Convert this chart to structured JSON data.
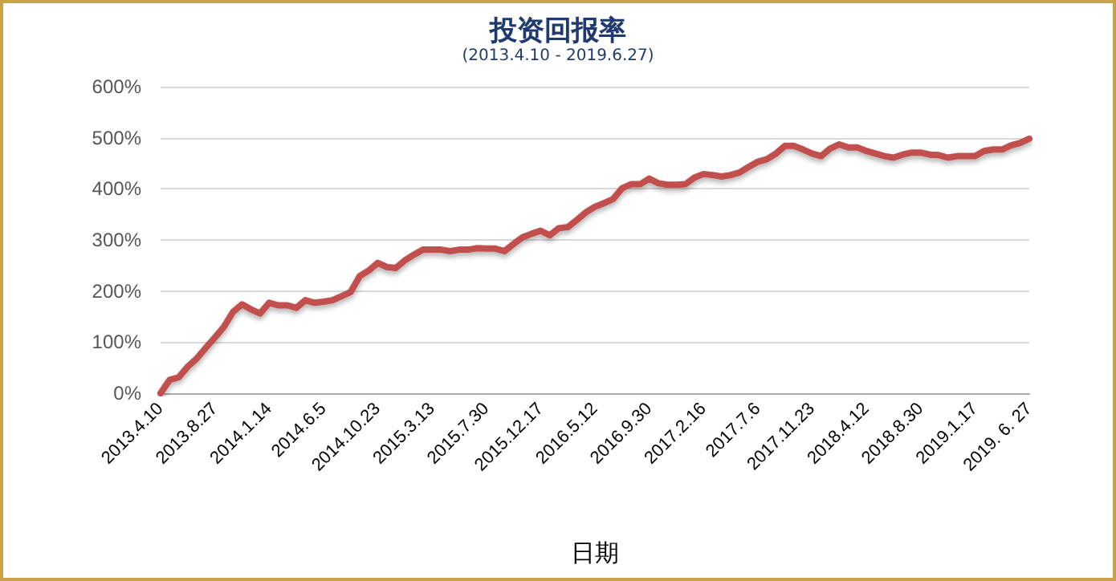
{
  "chart_data": {
    "type": "line",
    "title": "投资回报率",
    "subtitle": "(2013.4.10 - 2019.6.27)",
    "xlabel": "日期",
    "categories": [
      "2013.4.10",
      null,
      null,
      null,
      null,
      null,
      "2013.8.27",
      null,
      null,
      null,
      null,
      null,
      "2014.1.14",
      null,
      null,
      null,
      null,
      null,
      "2014.6.5",
      null,
      null,
      null,
      null,
      null,
      "2014.10.23",
      null,
      null,
      null,
      null,
      null,
      "2015.3.13",
      null,
      null,
      null,
      null,
      null,
      "2015.7.30",
      null,
      null,
      null,
      null,
      null,
      "2015.12.17",
      null,
      null,
      null,
      null,
      null,
      "2016.5.12",
      null,
      null,
      null,
      null,
      null,
      "2016.9.30",
      null,
      null,
      null,
      null,
      null,
      "2017.2.16",
      null,
      null,
      null,
      null,
      null,
      "2017.7.6",
      null,
      null,
      null,
      null,
      null,
      "2017.11.23",
      null,
      null,
      null,
      null,
      null,
      "2018.4.12",
      null,
      null,
      null,
      null,
      null,
      "2018.8.30",
      null,
      null,
      null,
      null,
      null,
      "2019.1.17",
      null,
      null,
      null,
      null,
      null,
      "2019. 6. 27"
    ],
    "series": [
      {
        "color": "#c0504d",
        "values": [
          0,
          26,
          31,
          52,
          68,
          89,
          109,
          130,
          159,
          174,
          164,
          156,
          177,
          172,
          172,
          167,
          182,
          177,
          179,
          182,
          190,
          198,
          229,
          240,
          255,
          247,
          245,
          260,
          271,
          281,
          281,
          281,
          278,
          281,
          281,
          284,
          283,
          283,
          278,
          292,
          305,
          312,
          318,
          309,
          323,
          325,
          339,
          354,
          365,
          372,
          380,
          401,
          409,
          409,
          420,
          411,
          408,
          408,
          409,
          422,
          429,
          427,
          424,
          427,
          432,
          443,
          453,
          458,
          469,
          484,
          484,
          477,
          469,
          464,
          479,
          487,
          481,
          481,
          474,
          469,
          464,
          461,
          467,
          471,
          471,
          467,
          466,
          461,
          464,
          464,
          464,
          474,
          477,
          477,
          485,
          490,
          498
        ]
      }
    ],
    "ylim": [
      0,
      600
    ],
    "yticks": [
      {
        "value": 0,
        "label": "0%"
      },
      {
        "value": 100,
        "label": "100%"
      },
      {
        "value": 200,
        "label": "200%"
      },
      {
        "value": 300,
        "label": "300%"
      },
      {
        "value": 400,
        "label": "400%"
      },
      {
        "value": 500,
        "label": "500%"
      },
      {
        "value": 600,
        "label": "600%"
      }
    ],
    "grid": "y",
    "marker": "none",
    "line_style": "solid"
  }
}
